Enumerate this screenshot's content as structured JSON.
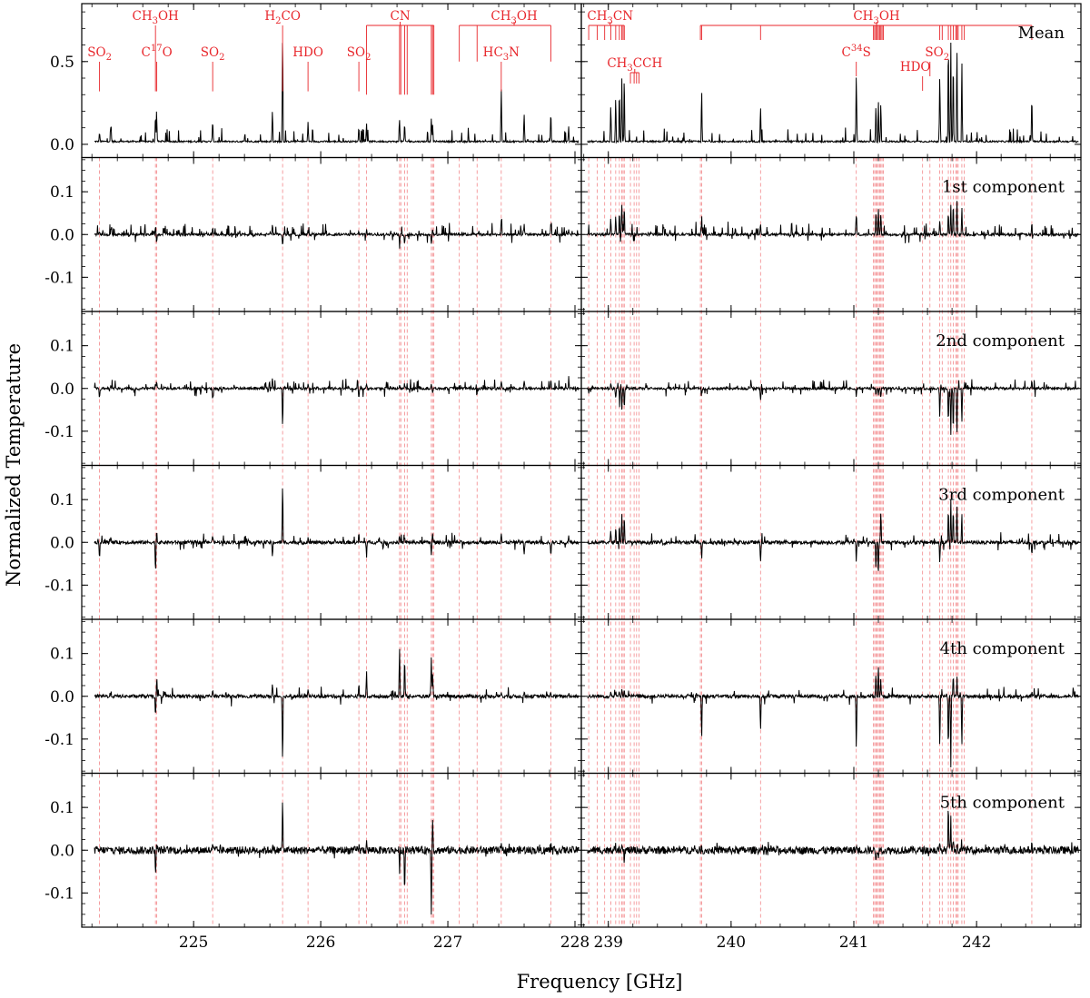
{
  "chart_data": {
    "type": "line",
    "xlabel": "Frequency [GHz]",
    "ylabel": "Normalized Temperature",
    "subplots_x": [
      {
        "id": "left",
        "xlim": [
          224.12,
          228.05
        ],
        "ticks": [
          225,
          226,
          227,
          228
        ],
        "tick_labels": [
          "225",
          "226",
          "227",
          "228"
        ]
      },
      {
        "id": "right",
        "xlim": [
          238.78,
          242.85
        ],
        "ticks": [
          239,
          240,
          241,
          242
        ],
        "tick_labels": [
          "239",
          "240",
          "241",
          "242"
        ]
      }
    ],
    "rows": [
      {
        "label": "Mean",
        "ylim": [
          -0.08,
          0.85
        ],
        "yticks": [
          0.0,
          0.5
        ],
        "ytick_labels": [
          "0.0",
          "0.5"
        ],
        "kind": "mean"
      },
      {
        "label": "1st component",
        "ylim": [
          -0.18,
          0.18
        ],
        "yticks": [
          -0.1,
          0.0,
          0.1
        ],
        "ytick_labels": [
          "-0.1",
          "0.0",
          "0.1"
        ],
        "kind": "pos"
      },
      {
        "label": "2nd component",
        "ylim": [
          -0.18,
          0.18
        ],
        "yticks": [
          -0.1,
          0.0,
          0.1
        ],
        "ytick_labels": [
          "-0.1",
          "0.0",
          "0.1"
        ],
        "kind": "neg"
      },
      {
        "label": "3rd component",
        "ylim": [
          -0.18,
          0.18
        ],
        "yticks": [
          -0.1,
          0.0,
          0.1
        ],
        "ytick_labels": [
          "-0.1",
          "0.0",
          "0.1"
        ],
        "kind": "mix"
      },
      {
        "label": "4th component",
        "ylim": [
          -0.18,
          0.18
        ],
        "yticks": [
          -0.1,
          0.0,
          0.1
        ],
        "ytick_labels": [
          "-0.1",
          "0.0",
          "0.1"
        ],
        "kind": "mix"
      },
      {
        "label": "5th component",
        "ylim": [
          -0.18,
          0.18
        ],
        "yticks": [
          -0.1,
          0.0,
          0.1
        ],
        "ytick_labels": [
          "-0.1",
          "0.0",
          "0.1"
        ],
        "kind": "noise"
      }
    ],
    "line_ids": [
      {
        "label": "SO2",
        "side": "left",
        "freqs": [
          224.26
        ]
      },
      {
        "label": "CH3OH",
        "side": "left",
        "freqs": [
          224.7
        ]
      },
      {
        "label": "C17O",
        "side": "left",
        "freqs": [
          224.71
        ]
      },
      {
        "label": "SO2",
        "side": "left",
        "freqs": [
          225.15
        ]
      },
      {
        "label": "H2CO",
        "side": "left",
        "freqs": [
          225.7
        ]
      },
      {
        "label": "HDO",
        "side": "left",
        "freqs": [
          225.9
        ]
      },
      {
        "label": "SO2",
        "side": "left",
        "freqs": [
          226.3
        ]
      },
      {
        "label": "CN",
        "side": "left",
        "freqs": [
          226.36,
          226.62,
          226.63,
          226.66,
          226.68,
          226.87,
          226.88,
          226.89
        ]
      },
      {
        "label": "CH3OH",
        "side": "left",
        "freqs": [
          227.09,
          227.23,
          227.81
        ]
      },
      {
        "label": "HC3N",
        "side": "left",
        "freqs": [
          227.42
        ]
      },
      {
        "label": "CH3CN",
        "side": "right",
        "freqs": [
          238.84,
          238.91,
          238.97,
          239.02,
          239.06,
          239.09,
          239.11,
          239.12,
          239.13
        ]
      },
      {
        "label": "CH3CCH",
        "side": "right",
        "freqs": [
          239.18,
          239.21,
          239.23,
          239.25
        ]
      },
      {
        "label": "CH3OH",
        "side": "right",
        "freqs": [
          239.75,
          239.76,
          240.24,
          241.16,
          241.17,
          241.18,
          241.19,
          241.2,
          241.21,
          241.22,
          241.23,
          241.24,
          241.7,
          241.72,
          241.77,
          241.79,
          241.81,
          241.83,
          241.84,
          241.85,
          241.88,
          241.9,
          242.45
        ]
      },
      {
        "label": "C34S",
        "side": "right",
        "freqs": [
          241.02
        ]
      },
      {
        "label": "HDO",
        "side": "right",
        "freqs": [
          241.56
        ]
      },
      {
        "label": "SO2",
        "side": "right",
        "freqs": [
          241.62
        ]
      }
    ],
    "features": {
      "left": [
        {
          "f": 224.26,
          "m": 0.06,
          "c": [
            0.004,
            -0.03,
            -0.04,
            0.0,
            0.0
          ]
        },
        {
          "f": 224.35,
          "m": 0.12,
          "c": [
            0.015,
            0.01,
            0.012,
            0.01,
            0.005
          ]
        },
        {
          "f": 224.7,
          "m": 0.18,
          "c": [
            0.02,
            0.01,
            -0.07,
            -0.055,
            -0.065
          ]
        },
        {
          "f": 224.71,
          "m": 0.14,
          "c": [
            -0.02,
            0.02,
            0.03,
            0.035,
            0.02
          ]
        },
        {
          "f": 225.15,
          "m": 0.14,
          "c": [
            0.02,
            -0.03,
            0.02,
            0.012,
            0.01
          ]
        },
        {
          "f": 225.62,
          "m": 0.2,
          "c": [
            0.025,
            0.025,
            -0.04,
            0.03,
            0.01
          ]
        },
        {
          "f": 225.7,
          "m": 0.72,
          "c": [
            -0.03,
            -0.1,
            0.15,
            -0.17,
            0.13
          ]
        },
        {
          "f": 225.9,
          "m": 0.12,
          "c": [
            0.01,
            0.01,
            0.012,
            0.02,
            0.005
          ]
        },
        {
          "f": 226.3,
          "m": 0.1,
          "c": [
            0.01,
            -0.03,
            0.02,
            0.03,
            0.01
          ]
        },
        {
          "f": 226.36,
          "m": 0.12,
          "c": [
            0.012,
            0.01,
            -0.03,
            0.06,
            0.02
          ]
        },
        {
          "f": 226.62,
          "m": 0.14,
          "c": [
            -0.02,
            0.01,
            0.015,
            0.12,
            -0.05
          ]
        },
        {
          "f": 226.66,
          "m": 0.12,
          "c": [
            -0.025,
            0.012,
            0.01,
            0.1,
            -0.105
          ]
        },
        {
          "f": 226.87,
          "m": 0.15,
          "c": [
            -0.025,
            0.012,
            -0.03,
            0.1,
            -0.15
          ]
        },
        {
          "f": 226.88,
          "m": 0.1,
          "c": [
            0.01,
            -0.01,
            0.02,
            0.05,
            0.08
          ]
        },
        {
          "f": 227.42,
          "m": 0.34,
          "c": [
            0.035,
            0.02,
            0.025,
            0.012,
            0.01
          ]
        },
        {
          "f": 227.6,
          "m": 0.18,
          "c": [
            0.025,
            0.02,
            -0.03,
            0.012,
            0.005
          ]
        },
        {
          "f": 227.81,
          "m": 0.2,
          "c": [
            0.03,
            0.025,
            -0.04,
            0.01,
            0.005
          ]
        },
        {
          "f": 227.95,
          "m": 0.1,
          "c": [
            0.01,
            0.03,
            0.02,
            0.01,
            0.005
          ]
        }
      ],
      "right": [
        {
          "f": 239.02,
          "m": 0.24,
          "c": [
            0.04,
            0.01,
            0.03,
            0.01,
            0.01
          ]
        },
        {
          "f": 239.06,
          "m": 0.3,
          "c": [
            0.05,
            -0.03,
            0.04,
            0.01,
            0.01
          ]
        },
        {
          "f": 239.09,
          "m": 0.35,
          "c": [
            0.06,
            -0.04,
            0.05,
            0.015,
            0.015
          ]
        },
        {
          "f": 239.11,
          "m": 0.38,
          "c": [
            0.07,
            -0.05,
            0.065,
            0.02,
            0.02
          ]
        },
        {
          "f": 239.13,
          "m": 0.4,
          "c": [
            0.075,
            -0.055,
            0.07,
            0.02,
            -0.03
          ]
        },
        {
          "f": 239.76,
          "m": 0.35,
          "c": [
            0.04,
            -0.03,
            -0.04,
            -0.11,
            0.01
          ]
        },
        {
          "f": 240.24,
          "m": 0.24,
          "c": [
            0.03,
            -0.035,
            -0.05,
            -0.09,
            0.01
          ]
        },
        {
          "f": 241.02,
          "m": 0.46,
          "c": [
            0.05,
            -0.02,
            -0.05,
            -0.14,
            0.01
          ]
        },
        {
          "f": 241.18,
          "m": 0.24,
          "c": [
            0.05,
            -0.02,
            -0.07,
            0.06,
            -0.02
          ]
        },
        {
          "f": 241.2,
          "m": 0.28,
          "c": [
            0.07,
            -0.02,
            -0.08,
            0.08,
            -0.03
          ]
        },
        {
          "f": 241.22,
          "m": 0.26,
          "c": [
            0.06,
            -0.02,
            0.08,
            0.05,
            0.01
          ]
        },
        {
          "f": 241.7,
          "m": 0.45,
          "c": [
            0.04,
            -0.06,
            -0.05,
            -0.13,
            0.01
          ]
        },
        {
          "f": 241.77,
          "m": 0.65,
          "c": [
            0.06,
            -0.09,
            0.09,
            -0.14,
            0.12
          ]
        },
        {
          "f": 241.79,
          "m": 0.6,
          "c": [
            0.07,
            -0.11,
            0.1,
            -0.17,
            0.08
          ]
        },
        {
          "f": 241.81,
          "m": 0.55,
          "c": [
            0.08,
            -0.12,
            0.09,
            0.06,
            0.03
          ]
        },
        {
          "f": 241.84,
          "m": 0.63,
          "c": [
            0.09,
            -0.12,
            0.1,
            0.05,
            0.02
          ]
        },
        {
          "f": 241.88,
          "m": 0.55,
          "c": [
            0.07,
            -0.09,
            0.08,
            -0.13,
            0.02
          ]
        },
        {
          "f": 242.45,
          "m": 0.3,
          "c": [
            0.03,
            0.02,
            -0.03,
            0.01,
            0.01
          ]
        }
      ]
    }
  }
}
